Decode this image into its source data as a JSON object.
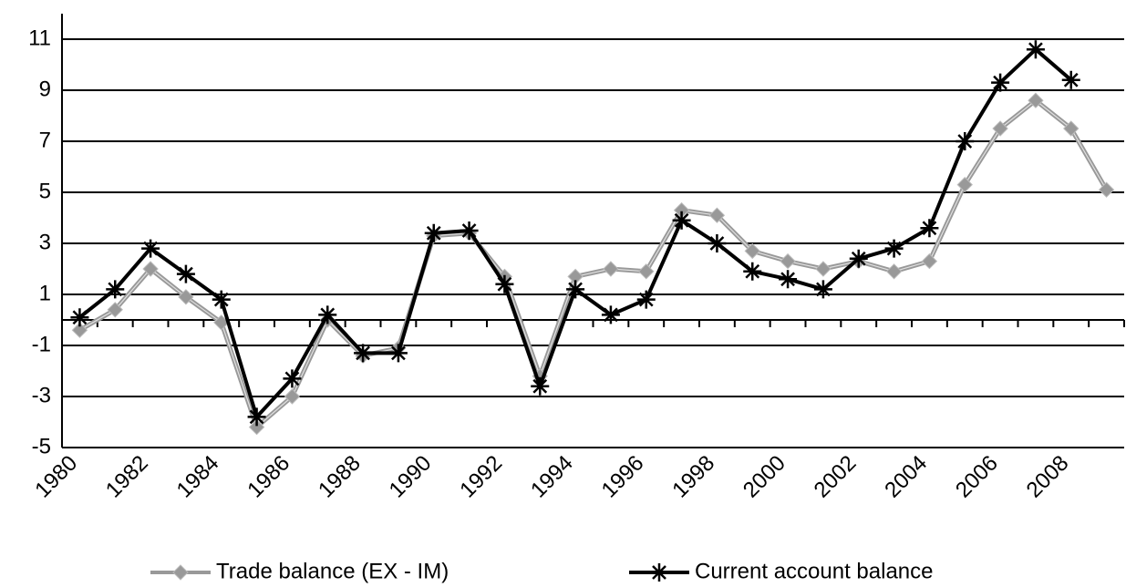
{
  "chart_data": {
    "type": "line",
    "categories": [
      "1980",
      null,
      "1982",
      null,
      "1984",
      null,
      "1986",
      null,
      "1988",
      null,
      "1990",
      null,
      "1992",
      null,
      "1994",
      null,
      "1996",
      null,
      "1998",
      null,
      "2000",
      null,
      "2002",
      null,
      "2004",
      null,
      "2006",
      null,
      "2008",
      null
    ],
    "series": [
      {
        "name": "Trade balance (EX - IM)",
        "color": "#999999",
        "marker": "diamond",
        "values": [
          -0.4,
          0.4,
          2.0,
          0.9,
          -0.1,
          -4.2,
          -3.0,
          0.0,
          -1.4,
          -1.1,
          3.3,
          3.4,
          1.7,
          -2.2,
          1.7,
          2.0,
          1.9,
          4.3,
          4.1,
          2.7,
          2.3,
          2.0,
          2.3,
          1.9,
          2.3,
          5.3,
          7.5,
          8.6,
          7.5,
          5.1
        ]
      },
      {
        "name": "Current account balance",
        "color": "#000000",
        "marker": "asterisk",
        "values": [
          0.1,
          1.2,
          2.8,
          1.8,
          0.8,
          -3.8,
          -2.3,
          0.2,
          -1.3,
          -1.3,
          3.4,
          3.5,
          1.4,
          -2.6,
          1.2,
          0.2,
          0.8,
          3.9,
          3.0,
          1.9,
          1.6,
          1.2,
          2.4,
          2.8,
          3.6,
          7.0,
          9.3,
          10.6,
          9.4,
          null
        ]
      }
    ],
    "ylim": [
      -5,
      12
    ],
    "yticks": [
      -5,
      -3,
      -1,
      1,
      3,
      5,
      7,
      9,
      11
    ],
    "grid": true,
    "legend": "bottom"
  }
}
